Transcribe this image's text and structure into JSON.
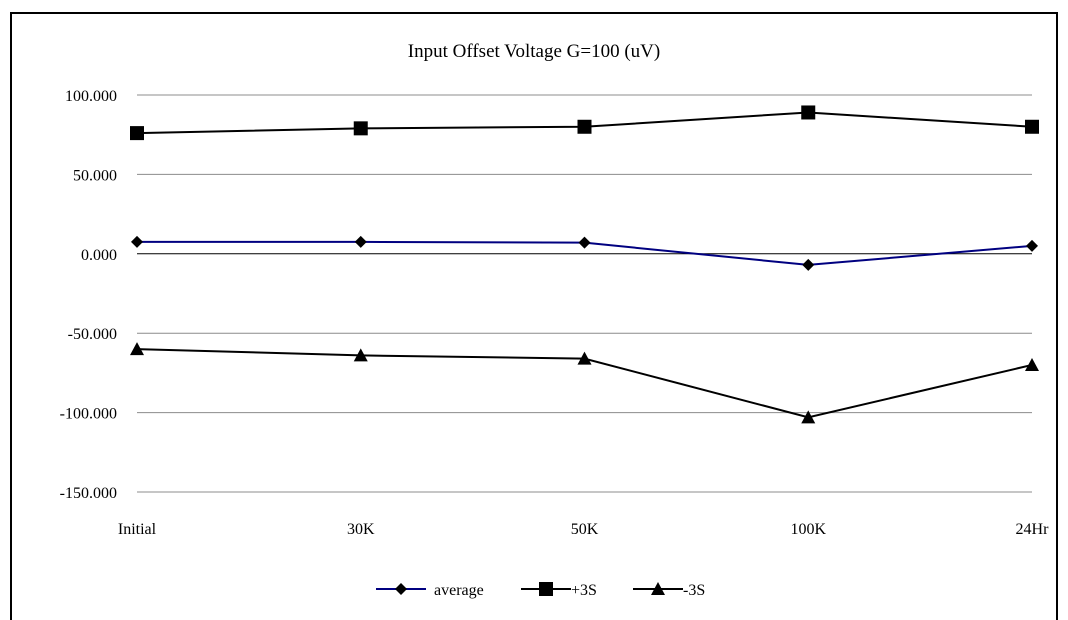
{
  "chart_data": {
    "type": "line",
    "title": "Input Offset Voltage G=100  (uV)",
    "categories": [
      "Initial",
      "30K",
      "50K",
      "100K",
      "24Hr"
    ],
    "ylim": [
      -150,
      100
    ],
    "yticks": [
      100,
      50,
      0,
      -50,
      -100,
      -150
    ],
    "ytick_labels": [
      "100.000",
      "50.000",
      "0.000",
      "-50.000",
      "-100.000",
      "-150.000"
    ],
    "grid": true,
    "legend_position": "bottom",
    "series": [
      {
        "name": "average",
        "marker": "diamond",
        "color": "#000080",
        "values": [
          7.5,
          7.5,
          7,
          -7,
          5
        ]
      },
      {
        "name": "+3S",
        "marker": "square",
        "color": "#000000",
        "values": [
          76,
          79,
          80,
          89,
          80
        ]
      },
      {
        "name": "-3S",
        "marker": "triangle",
        "color": "#000000",
        "values": [
          -60,
          -64,
          -66,
          -103,
          -70
        ]
      }
    ]
  }
}
